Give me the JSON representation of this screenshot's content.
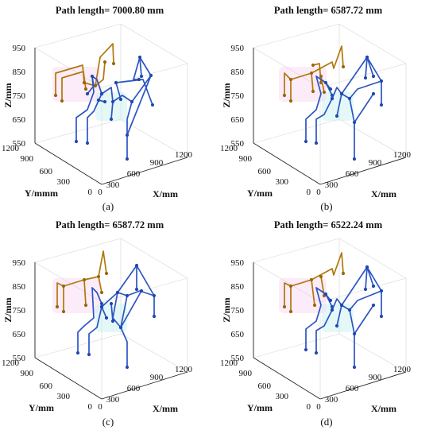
{
  "panels": [
    {
      "title": "Path length= 7000.80 mm",
      "caption": "(a)",
      "y_axis_label": "Y/mmm"
    },
    {
      "title": "Path length= 6587.72 mm",
      "caption": "(b)",
      "y_axis_label": "Y/mm"
    },
    {
      "title": "Path length= 6587.72 mm",
      "caption": "(c)",
      "y_axis_label": "Y/mm"
    },
    {
      "title": "Path length= 6522.24 mm",
      "caption": "(d)",
      "y_axis_label": "Y/mm"
    }
  ],
  "axes": {
    "z_label": "Z/mm",
    "x_label": "X/mm",
    "z_ticks": [
      "950",
      "850",
      "750",
      "650",
      "550"
    ],
    "y_ticks": [
      "1200",
      "900",
      "600",
      "300",
      "0"
    ],
    "x_ticks": [
      "0",
      "300",
      "600",
      "900",
      "1200"
    ]
  },
  "colors": {
    "path_orange": "#b0780a",
    "path_blue": "#2b55c2"
  }
}
